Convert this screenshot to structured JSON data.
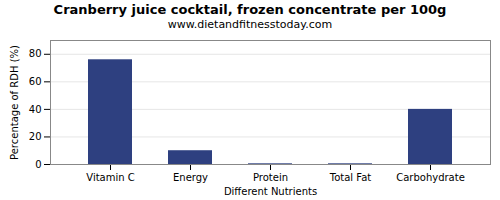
{
  "chart_data": {
    "type": "bar",
    "title": "Cranberry juice cocktail, frozen concentrate per 100g",
    "subtitle": "www.dietandfitnesstoday.com",
    "xlabel": "Different Nutrients",
    "ylabel": "Percentage of RDH (%)",
    "categories": [
      "Vitamin C",
      "Energy",
      "Protein",
      "Total Fat",
      "Carbohydrate"
    ],
    "values": [
      76,
      10,
      0.5,
      0.5,
      40
    ],
    "color": "#2e4080",
    "ylim": [
      0,
      90
    ],
    "yticks": [
      0,
      20,
      40,
      60,
      80
    ],
    "grid": true
  }
}
